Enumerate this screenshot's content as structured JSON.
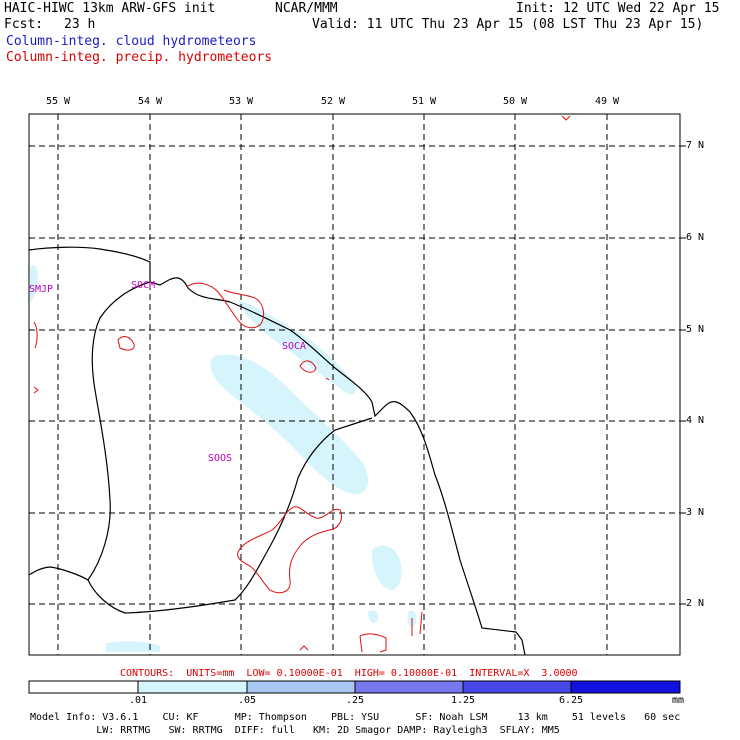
{
  "header": {
    "title_left": "HAIC-HIWC 13km ARW-GFS init",
    "org": "NCAR/MMM",
    "init": "Init: 12 UTC Wed 22 Apr 15",
    "fcst_label": "Fcst:",
    "fcst_value": "23 h",
    "valid": "Valid: 11 UTC Thu 23 Apr 15 (08 LST Thu 23 Apr 15)",
    "field1": "Column-integ. cloud hydrometeors",
    "field2": "Column-integ. precip. hydrometeors"
  },
  "map": {
    "lon_labels": [
      "55 W",
      "54 W",
      "53 W",
      "52 W",
      "51 W",
      "50 W",
      "49 W"
    ],
    "lat_labels": [
      "7 N",
      "6 N",
      "5 N",
      "4 N",
      "3 N",
      "2 N"
    ],
    "stations": [
      "SMJP",
      "SOCM",
      "SOCA",
      "SOOS"
    ]
  },
  "contours_note": "CONTOURS:  UNITS=mm  LOW= 0.10000E-01  HIGH= 0.10000E-01  INTERVAL=X  3.0000",
  "legend": {
    "values": [
      ".01",
      ".05",
      ".25",
      "1.25",
      "6.25"
    ],
    "unit": "mm",
    "colors": [
      "#ffffff",
      "#d6f4fb",
      "#a8c8f2",
      "#7878ee",
      "#4848e8",
      "#1212e0"
    ]
  },
  "footer": {
    "line1": "Model Info: V3.6.1    CU: KF      MP: Thompson    PBL: YSU      SF: Noah LSM     13 km    51 levels   60 sec",
    "line2": "           LW: RRTMG   SW: RRTMG  DIFF: full   KM: 2D Smagor DAMP: Rayleigh3  SFLAY: MM5"
  }
}
